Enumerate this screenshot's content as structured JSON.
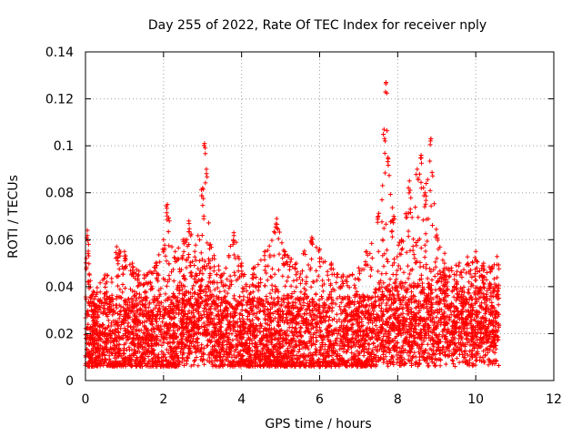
{
  "chart_data": {
    "type": "scatter",
    "title": "Day 255 of 2022, Rate Of TEC Index for receiver nply",
    "xlabel": "GPS time / hours",
    "ylabel": "ROTI / TECUs",
    "xlim": [
      0,
      12
    ],
    "ylim": [
      0,
      0.14
    ],
    "xticks": [
      0,
      2,
      4,
      6,
      8,
      10,
      12
    ],
    "xtick_labels": [
      "0",
      "2",
      "4",
      "6",
      "8",
      "10",
      "12"
    ],
    "yticks": [
      0,
      0.02,
      0.04,
      0.06,
      0.08,
      0.1,
      0.12,
      0.14
    ],
    "ytick_labels": [
      "0",
      "0.02",
      "0.04",
      "0.06",
      "0.08",
      "0.1",
      "0.12",
      "0.14"
    ],
    "grid": true,
    "marker": "+",
    "color": "#ff0000",
    "data_x_range": [
      0,
      10.6
    ],
    "series": [
      {
        "name": "ROTI",
        "note": "dense scatter; representative envelope points (hour, ROTI)",
        "points": [
          [
            0.02,
            0.052
          ],
          [
            0.05,
            0.064
          ],
          [
            0.08,
            0.058
          ],
          [
            0.1,
            0.045
          ],
          [
            0.2,
            0.038
          ],
          [
            0.5,
            0.045
          ],
          [
            0.8,
            0.057
          ],
          [
            1.0,
            0.055
          ],
          [
            1.2,
            0.05
          ],
          [
            1.5,
            0.045
          ],
          [
            1.8,
            0.05
          ],
          [
            2.0,
            0.06
          ],
          [
            2.1,
            0.075
          ],
          [
            2.3,
            0.055
          ],
          [
            2.5,
            0.06
          ],
          [
            2.65,
            0.068
          ],
          [
            2.8,
            0.055
          ],
          [
            3.0,
            0.082
          ],
          [
            3.05,
            0.101
          ],
          [
            3.1,
            0.09
          ],
          [
            3.2,
            0.058
          ],
          [
            3.5,
            0.045
          ],
          [
            3.8,
            0.063
          ],
          [
            4.0,
            0.05
          ],
          [
            4.3,
            0.048
          ],
          [
            4.6,
            0.055
          ],
          [
            4.9,
            0.069
          ],
          [
            5.1,
            0.055
          ],
          [
            5.4,
            0.05
          ],
          [
            5.8,
            0.061
          ],
          [
            6.0,
            0.056
          ],
          [
            6.3,
            0.05
          ],
          [
            6.6,
            0.045
          ],
          [
            7.0,
            0.048
          ],
          [
            7.2,
            0.055
          ],
          [
            7.5,
            0.07
          ],
          [
            7.65,
            0.107
          ],
          [
            7.7,
            0.127
          ],
          [
            7.75,
            0.095
          ],
          [
            7.9,
            0.07
          ],
          [
            8.1,
            0.06
          ],
          [
            8.3,
            0.085
          ],
          [
            8.5,
            0.09
          ],
          [
            8.6,
            0.096
          ],
          [
            8.7,
            0.08
          ],
          [
            8.85,
            0.103
          ],
          [
            9.0,
            0.062
          ],
          [
            9.2,
            0.05
          ],
          [
            9.5,
            0.045
          ],
          [
            9.8,
            0.05
          ],
          [
            10.0,
            0.055
          ],
          [
            10.2,
            0.05
          ],
          [
            10.4,
            0.048
          ],
          [
            10.55,
            0.04
          ]
        ]
      }
    ]
  }
}
